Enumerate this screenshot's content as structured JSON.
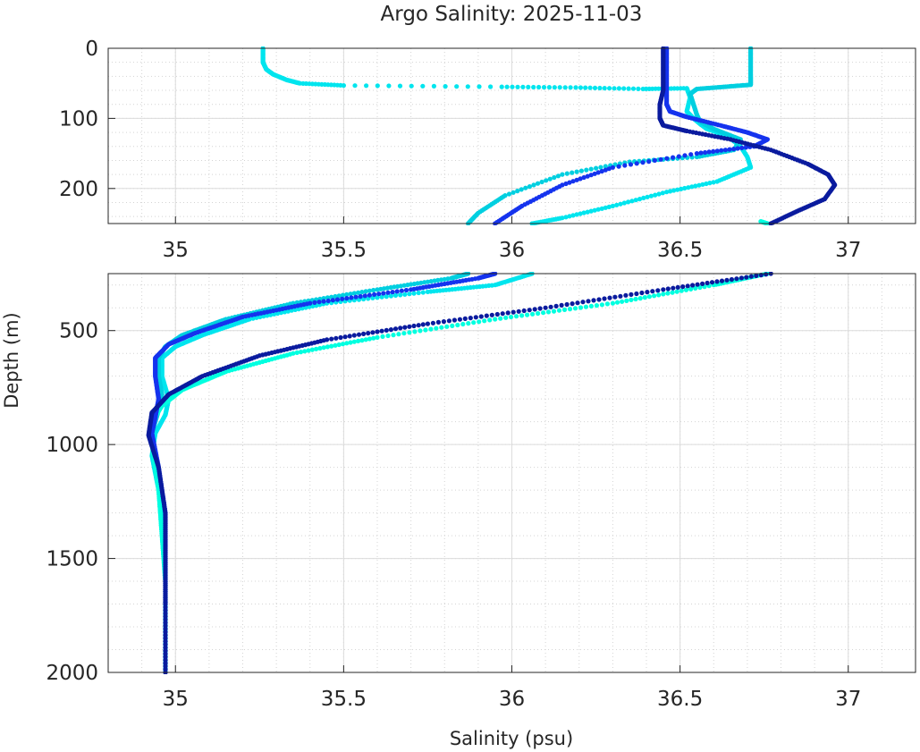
{
  "chart_data": {
    "type": "scatter",
    "title": "Argo Salinity: 2025-11-03",
    "xlabel": "Salinity (psu)",
    "ylabel": "Depth (m)",
    "y_reversed": true,
    "grid": true,
    "minor_grid": true,
    "panels": [
      {
        "id": "upper",
        "xlim": [
          34.8,
          37.2
        ],
        "ylim": [
          0,
          250
        ],
        "xticks": [
          35,
          35.5,
          36,
          36.5,
          37
        ],
        "xtick_labels": [
          "35",
          "35.5",
          "36",
          "36.5",
          "37"
        ],
        "yticks": [
          0,
          100,
          200
        ],
        "ytick_labels": [
          "0",
          "100",
          "200"
        ]
      },
      {
        "id": "lower",
        "xlim": [
          34.8,
          37.2
        ],
        "ylim": [
          250,
          2000
        ],
        "xticks": [
          35,
          35.5,
          36,
          36.5,
          37
        ],
        "xtick_labels": [
          "35",
          "35.5",
          "36",
          "36.5",
          "37"
        ],
        "yticks": [
          500,
          1000,
          1500,
          2000
        ],
        "ytick_labels": [
          "500",
          "1000",
          "1500",
          "2000"
        ]
      }
    ],
    "series": [
      {
        "color": "#00e5ee",
        "points": [
          [
            35.26,
            0
          ],
          [
            35.26,
            10
          ],
          [
            35.26,
            20
          ],
          [
            35.27,
            30
          ],
          [
            35.29,
            37
          ],
          [
            35.33,
            45
          ],
          [
            35.37,
            50
          ],
          [
            35.5,
            53
          ],
          [
            35.97,
            55
          ],
          [
            36.19,
            56
          ],
          [
            36.39,
            58
          ],
          [
            36.52,
            57
          ],
          [
            36.53,
            70
          ],
          [
            36.52,
            90
          ],
          [
            36.54,
            100
          ],
          [
            36.56,
            108
          ],
          [
            36.58,
            115
          ],
          [
            36.64,
            125
          ],
          [
            36.68,
            140
          ],
          [
            36.7,
            155
          ],
          [
            36.71,
            170
          ],
          [
            36.61,
            190
          ],
          [
            36.46,
            205
          ],
          [
            36.3,
            225
          ],
          [
            36.15,
            242
          ],
          [
            36.06,
            250
          ]
        ],
        "deep": [
          [
            36.06,
            250
          ],
          [
            35.95,
            300
          ],
          [
            35.75,
            330
          ],
          [
            35.45,
            380
          ],
          [
            35.22,
            450
          ],
          [
            35.08,
            520
          ],
          [
            35.0,
            570
          ],
          [
            34.96,
            620
          ],
          [
            34.96,
            700
          ],
          [
            34.98,
            800
          ],
          [
            34.97,
            870
          ],
          [
            34.94,
            950
          ],
          [
            34.93,
            1050
          ],
          [
            34.95,
            1200
          ],
          [
            34.96,
            1400
          ],
          [
            34.97,
            1600
          ],
          [
            34.97,
            1800
          ],
          [
            34.97,
            2000
          ]
        ]
      },
      {
        "color": "#00cfe0",
        "points": [
          [
            36.71,
            0
          ],
          [
            36.71,
            20
          ],
          [
            36.71,
            40
          ],
          [
            36.71,
            52
          ],
          [
            36.63,
            55
          ],
          [
            36.55,
            58
          ],
          [
            36.53,
            65
          ],
          [
            36.54,
            80
          ],
          [
            36.55,
            95
          ],
          [
            36.56,
            105
          ],
          [
            36.6,
            115
          ],
          [
            36.68,
            130
          ],
          [
            36.66,
            145
          ],
          [
            36.55,
            155
          ],
          [
            36.35,
            162
          ],
          [
            36.15,
            180
          ],
          [
            35.98,
            210
          ],
          [
            35.9,
            235
          ],
          [
            35.87,
            250
          ]
        ],
        "deep": [
          [
            35.87,
            250
          ],
          [
            35.82,
            270
          ],
          [
            35.6,
            320
          ],
          [
            35.35,
            380
          ],
          [
            35.15,
            450
          ],
          [
            35.02,
            520
          ],
          [
            34.97,
            570
          ],
          [
            34.95,
            620
          ],
          [
            34.95,
            700
          ],
          [
            34.96,
            780
          ],
          [
            34.95,
            850
          ],
          [
            34.93,
            950
          ],
          [
            34.94,
            1100
          ],
          [
            34.96,
            1300
          ],
          [
            34.97,
            1500
          ],
          [
            34.97,
            1700
          ],
          [
            34.97,
            2000
          ]
        ]
      },
      {
        "color": "#00ffe0",
        "points": [
          [
            36.74,
            247
          ],
          [
            36.76,
            250
          ]
        ],
        "deep": [
          [
            36.76,
            250
          ],
          [
            36.6,
            300
          ],
          [
            36.3,
            380
          ],
          [
            35.95,
            450
          ],
          [
            35.6,
            530
          ],
          [
            35.35,
            600
          ],
          [
            35.15,
            680
          ],
          [
            35.02,
            760
          ],
          [
            34.96,
            830
          ],
          [
            34.93,
            900
          ],
          [
            34.93,
            1000
          ],
          [
            34.95,
            1200
          ],
          [
            34.96,
            1400
          ],
          [
            34.97,
            1600
          ],
          [
            34.97,
            2000
          ]
        ]
      },
      {
        "color": "#1533ee",
        "points": [
          [
            36.46,
            0
          ],
          [
            36.46,
            20
          ],
          [
            36.46,
            40
          ],
          [
            36.46,
            60
          ],
          [
            36.46,
            80
          ],
          [
            36.47,
            90
          ],
          [
            36.52,
            98
          ],
          [
            36.62,
            110
          ],
          [
            36.7,
            120
          ],
          [
            36.76,
            130
          ],
          [
            36.72,
            140
          ],
          [
            36.55,
            150
          ],
          [
            36.3,
            170
          ],
          [
            36.15,
            195
          ],
          [
            36.03,
            225
          ],
          [
            35.95,
            250
          ]
        ],
        "deep": [
          [
            35.95,
            250
          ],
          [
            35.9,
            270
          ],
          [
            35.7,
            320
          ],
          [
            35.4,
            380
          ],
          [
            35.2,
            440
          ],
          [
            35.06,
            510
          ],
          [
            34.98,
            560
          ],
          [
            34.94,
            620
          ],
          [
            34.94,
            700
          ],
          [
            34.95,
            800
          ],
          [
            34.94,
            880
          ],
          [
            34.93,
            950
          ],
          [
            34.95,
            1100
          ],
          [
            34.97,
            1300
          ],
          [
            34.97,
            1500
          ],
          [
            34.97,
            1700
          ],
          [
            34.97,
            2000
          ]
        ]
      },
      {
        "color": "#0a1b9e",
        "points": [
          [
            36.45,
            0
          ],
          [
            36.45,
            20
          ],
          [
            36.45,
            40
          ],
          [
            36.45,
            60
          ],
          [
            36.44,
            80
          ],
          [
            36.44,
            100
          ],
          [
            36.45,
            110
          ],
          [
            36.52,
            118
          ],
          [
            36.65,
            130
          ],
          [
            36.77,
            145
          ],
          [
            36.88,
            165
          ],
          [
            36.94,
            180
          ],
          [
            36.96,
            195
          ],
          [
            36.93,
            215
          ],
          [
            36.85,
            232
          ],
          [
            36.77,
            250
          ]
        ],
        "deep": [
          [
            36.77,
            250
          ],
          [
            36.45,
            320
          ],
          [
            36.1,
            400
          ],
          [
            35.75,
            470
          ],
          [
            35.45,
            540
          ],
          [
            35.25,
            610
          ],
          [
            35.08,
            700
          ],
          [
            34.98,
            780
          ],
          [
            34.93,
            860
          ],
          [
            34.92,
            960
          ],
          [
            34.95,
            1100
          ],
          [
            34.97,
            1300
          ],
          [
            34.97,
            1500
          ],
          [
            34.97,
            1700
          ],
          [
            34.97,
            2000
          ]
        ]
      }
    ]
  }
}
